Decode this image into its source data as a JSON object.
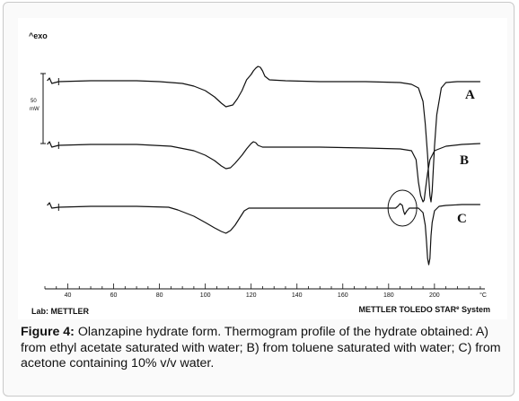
{
  "chart_data": {
    "type": "line",
    "title": "",
    "y_axis_corner_label": "^exo",
    "scale_bar": {
      "value": "50",
      "unit": "mW"
    },
    "xlabel": "°C",
    "xlim": [
      30,
      222
    ],
    "xticks": [
      40,
      60,
      80,
      100,
      120,
      140,
      160,
      180,
      200
    ],
    "ylabel": "",
    "grid": false,
    "footer_left": "Lab: METTLER",
    "footer_right": "METTLER TOLEDO STAR",
    "footer_right_sup": "e",
    "footer_right_end": " System",
    "series": [
      {
        "name": "A",
        "points": [
          [
            31,
            87
          ],
          [
            32,
            84
          ],
          [
            33,
            90
          ],
          [
            36,
            88
          ],
          [
            50,
            87
          ],
          [
            70,
            87
          ],
          [
            80,
            88
          ],
          [
            90,
            90
          ],
          [
            95,
            93
          ],
          [
            100,
            98
          ],
          [
            104,
            105
          ],
          [
            107,
            112
          ],
          [
            109,
            116
          ],
          [
            112,
            114
          ],
          [
            114,
            107
          ],
          [
            116,
            98
          ],
          [
            118,
            86
          ],
          [
            120,
            80
          ],
          [
            121,
            76
          ],
          [
            122,
            73
          ],
          [
            123,
            71
          ],
          [
            124,
            72
          ],
          [
            125,
            76
          ],
          [
            126,
            82
          ],
          [
            128,
            86
          ],
          [
            135,
            87
          ],
          [
            150,
            88
          ],
          [
            170,
            88
          ],
          [
            185,
            89
          ],
          [
            190,
            91
          ],
          [
            193,
            95
          ],
          [
            195,
            110
          ],
          [
            196,
            135
          ],
          [
            197,
            170
          ],
          [
            197.5,
            195
          ],
          [
            198,
            215
          ],
          [
            198.5,
            222
          ],
          [
            199,
            210
          ],
          [
            199.5,
            185
          ],
          [
            200,
            160
          ],
          [
            201,
            125
          ],
          [
            203,
            95
          ],
          [
            205,
            89
          ],
          [
            210,
            88
          ],
          [
            220,
            88
          ]
        ]
      },
      {
        "name": "B",
        "points": [
          [
            31,
            158
          ],
          [
            32,
            155
          ],
          [
            33,
            161
          ],
          [
            36,
            159
          ],
          [
            50,
            158
          ],
          [
            70,
            158
          ],
          [
            85,
            160
          ],
          [
            95,
            165
          ],
          [
            100,
            170
          ],
          [
            104,
            176
          ],
          [
            107,
            182
          ],
          [
            109,
            185
          ],
          [
            111,
            184
          ],
          [
            113,
            179
          ],
          [
            116,
            170
          ],
          [
            118,
            163
          ],
          [
            119,
            160
          ],
          [
            120,
            157
          ],
          [
            121,
            155
          ],
          [
            122,
            156
          ],
          [
            123,
            159
          ],
          [
            125,
            161
          ],
          [
            135,
            161
          ],
          [
            150,
            161
          ],
          [
            170,
            162
          ],
          [
            185,
            163
          ],
          [
            190,
            165
          ],
          [
            192,
            175
          ],
          [
            193,
            200
          ],
          [
            194,
            215
          ],
          [
            195,
            222
          ],
          [
            195.5,
            220
          ],
          [
            196,
            210
          ],
          [
            197,
            190
          ],
          [
            198,
            175
          ],
          [
            200,
            165
          ],
          [
            205,
            160
          ],
          [
            212,
            158
          ],
          [
            220,
            157
          ]
        ]
      },
      {
        "name": "C",
        "points": [
          [
            31,
            226
          ],
          [
            32,
            223
          ],
          [
            33,
            229
          ],
          [
            36,
            228
          ],
          [
            50,
            227
          ],
          [
            70,
            227
          ],
          [
            84,
            228
          ],
          [
            88,
            231
          ],
          [
            95,
            238
          ],
          [
            100,
            245
          ],
          [
            104,
            251
          ],
          [
            107,
            255
          ],
          [
            109,
            257
          ],
          [
            111,
            254
          ],
          [
            113,
            248
          ],
          [
            115,
            240
          ],
          [
            117,
            232
          ],
          [
            119,
            229
          ],
          [
            122,
            229
          ],
          [
            130,
            229
          ],
          [
            150,
            229
          ],
          [
            170,
            229
          ],
          [
            180,
            229
          ],
          [
            183,
            229
          ],
          [
            184,
            227
          ],
          [
            185,
            224
          ],
          [
            186,
            226
          ],
          [
            186.5,
            232
          ],
          [
            187,
            236
          ],
          [
            188,
            232
          ],
          [
            189,
            229
          ],
          [
            193,
            229
          ],
          [
            195,
            234
          ],
          [
            196,
            248
          ],
          [
            196.5,
            265
          ],
          [
            197,
            285
          ],
          [
            197.5,
            292
          ],
          [
            198,
            285
          ],
          [
            198.5,
            260
          ],
          [
            199,
            245
          ],
          [
            200,
            232
          ],
          [
            202,
            227
          ],
          [
            205,
            226
          ],
          [
            212,
            225
          ],
          [
            220,
            225
          ]
        ]
      }
    ]
  },
  "caption": {
    "label": "Figure 4:",
    "text": " Olanzapine hydrate form. Thermogram profile of the hydrate obtained: A) from ethyl acetate saturated with water; B) from toluene saturated with water; C) from acetone containing 10% v/v water."
  }
}
